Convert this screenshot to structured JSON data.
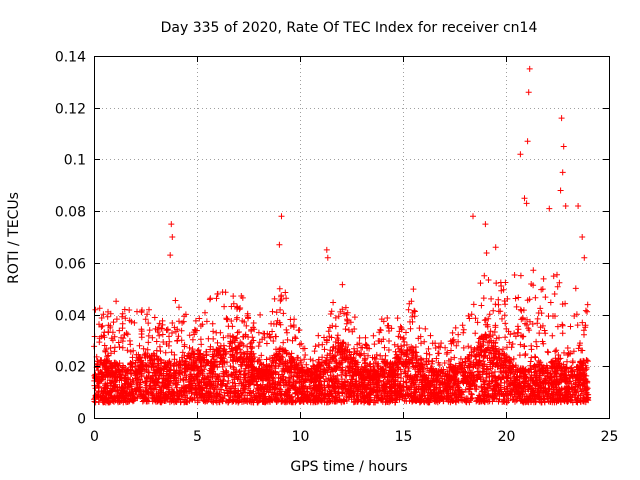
{
  "chart_data": {
    "type": "scatter",
    "title": "Day 335 of 2020, Rate Of TEC Index for receiver cn14",
    "xlabel": "GPS time / hours",
    "ylabel": "ROTI / TECUs",
    "xlim": [
      0,
      25
    ],
    "ylim": [
      0,
      0.14
    ],
    "xticks": [
      0,
      5,
      10,
      15,
      20,
      25
    ],
    "yticks": [
      0,
      0.02,
      0.04,
      0.06,
      0.08,
      0.1,
      0.12,
      0.14
    ],
    "xtick_labels": [
      "0",
      "5",
      "10",
      "15",
      "20",
      "25"
    ],
    "ytick_labels": [
      "0",
      "0.02",
      "0.04",
      "0.06",
      "0.08",
      "0.1",
      "0.12",
      "0.14"
    ],
    "grid": true,
    "marker": "+",
    "marker_color": "#ff0000",
    "series": [
      {
        "name": "ROTI",
        "baseline_profile": {
          "x": [
            0,
            0.5,
            1,
            1.5,
            2,
            2.5,
            3,
            3.5,
            4,
            4.5,
            5,
            5.5,
            6,
            6.5,
            7,
            7.5,
            8,
            8.5,
            9,
            9.5,
            10,
            10.5,
            11,
            11.5,
            12,
            12.5,
            13,
            13.5,
            14,
            14.5,
            15,
            15.5,
            16,
            16.5,
            17,
            17.5,
            18,
            18.5,
            19,
            19.5,
            20,
            20.5,
            21,
            21.5,
            22,
            22.5,
            23,
            23.5,
            24
          ],
          "typical": [
            0.016,
            0.017,
            0.016,
            0.015,
            0.016,
            0.02,
            0.018,
            0.016,
            0.017,
            0.018,
            0.02,
            0.017,
            0.02,
            0.022,
            0.024,
            0.02,
            0.016,
            0.015,
            0.022,
            0.018,
            0.015,
            0.014,
            0.016,
            0.02,
            0.024,
            0.018,
            0.015,
            0.014,
            0.017,
            0.016,
            0.022,
            0.02,
            0.016,
            0.014,
            0.013,
            0.015,
            0.017,
            0.02,
            0.024,
            0.02,
            0.018,
            0.015,
            0.014,
            0.016,
            0.015,
            0.018,
            0.014,
            0.016,
            0.017
          ],
          "upper": [
            0.05,
            0.045,
            0.045,
            0.05,
            0.042,
            0.05,
            0.045,
            0.04,
            0.048,
            0.045,
            0.045,
            0.045,
            0.055,
            0.05,
            0.052,
            0.045,
            0.04,
            0.042,
            0.06,
            0.05,
            0.035,
            0.03,
            0.035,
            0.045,
            0.055,
            0.045,
            0.035,
            0.03,
            0.05,
            0.04,
            0.05,
            0.05,
            0.04,
            0.035,
            0.032,
            0.035,
            0.045,
            0.05,
            0.065,
            0.058,
            0.06,
            0.055,
            0.065,
            0.06,
            0.06,
            0.07,
            0.045,
            0.055,
            0.05
          ]
        },
        "notable_points": [
          {
            "x": 3.75,
            "y": 0.075
          },
          {
            "x": 3.8,
            "y": 0.07
          },
          {
            "x": 3.7,
            "y": 0.063
          },
          {
            "x": 9.1,
            "y": 0.078
          },
          {
            "x": 9.0,
            "y": 0.067
          },
          {
            "x": 11.3,
            "y": 0.065
          },
          {
            "x": 11.35,
            "y": 0.062
          },
          {
            "x": 18.4,
            "y": 0.078
          },
          {
            "x": 19.0,
            "y": 0.075
          },
          {
            "x": 19.5,
            "y": 0.066
          },
          {
            "x": 20.7,
            "y": 0.102
          },
          {
            "x": 20.9,
            "y": 0.085
          },
          {
            "x": 21.0,
            "y": 0.083
          },
          {
            "x": 21.05,
            "y": 0.107
          },
          {
            "x": 21.1,
            "y": 0.126
          },
          {
            "x": 21.15,
            "y": 0.135
          },
          {
            "x": 22.1,
            "y": 0.081
          },
          {
            "x": 22.7,
            "y": 0.116
          },
          {
            "x": 22.8,
            "y": 0.105
          },
          {
            "x": 22.75,
            "y": 0.095
          },
          {
            "x": 22.65,
            "y": 0.088
          },
          {
            "x": 22.9,
            "y": 0.082
          },
          {
            "x": 23.5,
            "y": 0.082
          },
          {
            "x": 23.7,
            "y": 0.07
          },
          {
            "x": 23.8,
            "y": 0.062
          }
        ]
      }
    ]
  }
}
